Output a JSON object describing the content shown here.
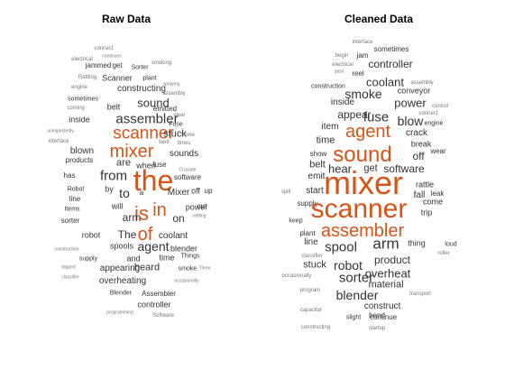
{
  "colors": {
    "primary": "#333333",
    "highlight": "#D95319",
    "background": "#ffffff"
  },
  "panels": [
    {
      "title": "Raw Data",
      "words": [
        {
          "text": "connect",
          "size": 6
        },
        {
          "text": "electrical",
          "size": 6
        },
        {
          "text": "continues",
          "size": 5
        },
        {
          "text": "jammed",
          "size": 8
        },
        {
          "text": "get",
          "size": 8
        },
        {
          "text": "Sorter",
          "size": 7
        },
        {
          "text": "smoking",
          "size": 6
        },
        {
          "text": "Rattling",
          "size": 6
        },
        {
          "text": "Scanner",
          "size": 9
        },
        {
          "text": "plant",
          "size": 7
        },
        {
          "text": "spraying",
          "size": 5
        },
        {
          "text": "engine",
          "size": 6
        },
        {
          "text": "constructing",
          "size": 10
        },
        {
          "text": "assembly",
          "size": 6
        },
        {
          "text": "sometimes",
          "size": 7
        },
        {
          "text": "sound",
          "size": 13
        },
        {
          "text": "coming",
          "size": 6
        },
        {
          "text": "belt",
          "size": 9
        },
        {
          "text": "emitted",
          "size": 8
        },
        {
          "text": "wear",
          "size": 6
        },
        {
          "text": "inside",
          "size": 9
        },
        {
          "text": "assembler",
          "size": 15
        },
        {
          "text": "Fuse",
          "size": 7
        },
        {
          "text": "unexpectedly",
          "size": 5
        },
        {
          "text": "scanner",
          "size": 19
        },
        {
          "text": "stuck",
          "size": 11
        },
        {
          "text": "Some",
          "size": 6
        },
        {
          "text": "interface",
          "size": 6
        },
        {
          "text": "bent",
          "size": 6
        },
        {
          "text": "Itmes",
          "size": 6
        },
        {
          "text": "blown",
          "size": 10
        },
        {
          "text": "mixer",
          "size": 20
        },
        {
          "text": "sounds",
          "size": 10
        },
        {
          "text": "products",
          "size": 8
        },
        {
          "text": "are",
          "size": 11
        },
        {
          "text": "when",
          "size": 9
        },
        {
          "text": "fuse",
          "size": 8
        },
        {
          "text": "Crusade",
          "size": 5
        },
        {
          "text": "has",
          "size": 8
        },
        {
          "text": "from",
          "size": 15
        },
        {
          "text": "the",
          "size": 32
        },
        {
          "text": "software",
          "size": 8
        },
        {
          "text": "Robot",
          "size": 7
        },
        {
          "text": "by",
          "size": 9
        },
        {
          "text": "to",
          "size": 14
        },
        {
          "text": "a",
          "size": 8
        },
        {
          "text": "Mixer",
          "size": 10
        },
        {
          "text": "off",
          "size": 9
        },
        {
          "text": "up",
          "size": 8
        },
        {
          "text": "line",
          "size": 8
        },
        {
          "text": "will",
          "size": 9
        },
        {
          "text": "is",
          "size": 22
        },
        {
          "text": "in",
          "size": 20
        },
        {
          "text": "power",
          "size": 9
        },
        {
          "text": "cut",
          "size": 8
        },
        {
          "text": "Items",
          "size": 7
        },
        {
          "text": "arm",
          "size": 12
        },
        {
          "text": "on",
          "size": 12
        },
        {
          "text": "rattling",
          "size": 5
        },
        {
          "text": "sorter",
          "size": 8
        },
        {
          "text": "robot",
          "size": 9
        },
        {
          "text": "The",
          "size": 12
        },
        {
          "text": "of",
          "size": 20
        },
        {
          "text": "coolant",
          "size": 10
        },
        {
          "text": "spools",
          "size": 9
        },
        {
          "text": "agent",
          "size": 14
        },
        {
          "text": "blender",
          "size": 9
        },
        {
          "text": "construction",
          "size": 5
        },
        {
          "text": "supply",
          "size": 7
        },
        {
          "text": "and",
          "size": 9
        },
        {
          "text": "time",
          "size": 9
        },
        {
          "text": "Things",
          "size": 7
        },
        {
          "text": "appearing",
          "size": 10
        },
        {
          "text": "heard",
          "size": 11
        },
        {
          "text": "smoke",
          "size": 7
        },
        {
          "text": "There",
          "size": 5
        },
        {
          "text": "tripped",
          "size": 5
        },
        {
          "text": "overheating",
          "size": 10
        },
        {
          "text": "classifier",
          "size": 5
        },
        {
          "text": "occasionally",
          "size": 5
        },
        {
          "text": "Blender",
          "size": 7
        },
        {
          "text": "Assembler",
          "size": 8
        },
        {
          "text": "controller",
          "size": 9
        },
        {
          "text": "programming",
          "size": 5
        },
        {
          "text": "Software",
          "size": 6
        }
      ]
    },
    {
      "title": "Cleaned Data",
      "words": [
        {
          "text": "interface",
          "size": 6
        },
        {
          "text": "sometimes",
          "size": 8
        },
        {
          "text": "begin",
          "size": 6
        },
        {
          "text": "jam",
          "size": 8
        },
        {
          "text": "electrical",
          "size": 6
        },
        {
          "text": "controller",
          "size": 12
        },
        {
          "text": "pass",
          "size": 5
        },
        {
          "text": "reel",
          "size": 8
        },
        {
          "text": "construction",
          "size": 7
        },
        {
          "text": "coolant",
          "size": 13
        },
        {
          "text": "assembly",
          "size": 6
        },
        {
          "text": "smoke",
          "size": 14
        },
        {
          "text": "conveyor",
          "size": 9
        },
        {
          "text": "inside",
          "size": 10
        },
        {
          "text": "power",
          "size": 13
        },
        {
          "text": "control",
          "size": 6
        },
        {
          "text": "appear",
          "size": 12
        },
        {
          "text": "fuse",
          "size": 15
        },
        {
          "text": "connect",
          "size": 6
        },
        {
          "text": "item",
          "size": 10
        },
        {
          "text": "agent",
          "size": 20
        },
        {
          "text": "blow",
          "size": 14
        },
        {
          "text": "engine",
          "size": 7
        },
        {
          "text": "crack",
          "size": 10
        },
        {
          "text": "time",
          "size": 11
        },
        {
          "text": "break",
          "size": 9
        },
        {
          "text": "show",
          "size": 8
        },
        {
          "text": "sound",
          "size": 24
        },
        {
          "text": "wear",
          "size": 8
        },
        {
          "text": "off",
          "size": 12
        },
        {
          "text": "belt",
          "size": 11
        },
        {
          "text": "hear",
          "size": 13
        },
        {
          "text": "get",
          "size": 11
        },
        {
          "text": "software",
          "size": 12
        },
        {
          "text": "emit",
          "size": 10
        },
        {
          "text": "mixer",
          "size": 36
        },
        {
          "text": "rattle",
          "size": 9
        },
        {
          "text": "spill",
          "size": 6
        },
        {
          "text": "start",
          "size": 10
        },
        {
          "text": "fall",
          "size": 10
        },
        {
          "text": "leak",
          "size": 8
        },
        {
          "text": "supply",
          "size": 8
        },
        {
          "text": "come",
          "size": 9
        },
        {
          "text": "scanner",
          "size": 30
        },
        {
          "text": "trip",
          "size": 9
        },
        {
          "text": "keep",
          "size": 7
        },
        {
          "text": "assembler",
          "size": 20
        },
        {
          "text": "plant",
          "size": 8
        },
        {
          "text": "arm",
          "size": 17
        },
        {
          "text": "line",
          "size": 10
        },
        {
          "text": "thing",
          "size": 9
        },
        {
          "text": "spool",
          "size": 15
        },
        {
          "text": "loud",
          "size": 7
        },
        {
          "text": "roller",
          "size": 6
        },
        {
          "text": "classifier",
          "size": 6
        },
        {
          "text": "robot",
          "size": 14
        },
        {
          "text": "product",
          "size": 12
        },
        {
          "text": "stuck",
          "size": 11
        },
        {
          "text": "overheat",
          "size": 13
        },
        {
          "text": "occasionally",
          "size": 6
        },
        {
          "text": "sorter",
          "size": 15
        },
        {
          "text": "material",
          "size": 11
        },
        {
          "text": "program",
          "size": 6
        },
        {
          "text": "blender",
          "size": 14
        },
        {
          "text": "transport",
          "size": 6
        },
        {
          "text": "construct",
          "size": 10
        },
        {
          "text": "bend",
          "size": 8
        },
        {
          "text": "capacitor",
          "size": 6
        },
        {
          "text": "slight",
          "size": 7
        },
        {
          "text": "continue",
          "size": 8
        },
        {
          "text": "constructing",
          "size": 6
        },
        {
          "text": "startup",
          "size": 6
        }
      ]
    }
  ]
}
